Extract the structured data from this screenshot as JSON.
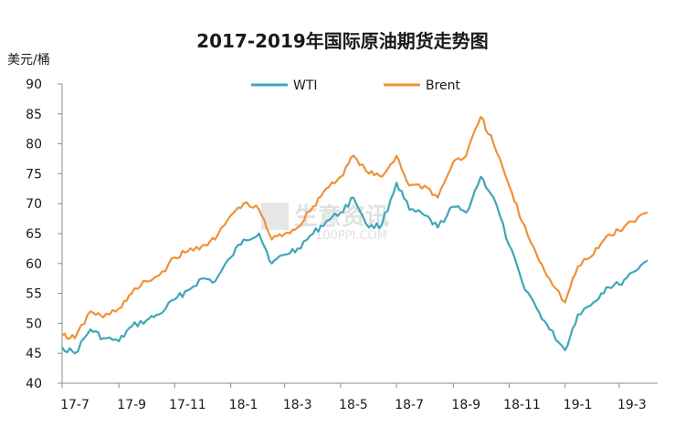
{
  "chart_data": {
    "type": "line",
    "title": "2017-2019年国际原油期货走势图",
    "ylabel": "美元/桶",
    "xlabel": "",
    "ylim": [
      40,
      90
    ],
    "yticks": [
      40,
      45,
      50,
      55,
      60,
      65,
      70,
      75,
      80,
      85,
      90
    ],
    "x_tick_labels": [
      "17-7",
      "17-9",
      "17-11",
      "18-1",
      "18-3",
      "18-5",
      "18-7",
      "18-9",
      "18-11",
      "19-1",
      "19-3"
    ],
    "legend_position": "top",
    "grid": false,
    "watermark": "生意资讯",
    "watermark_sub": "100PPI.COM",
    "x": [
      "2017-07-01",
      "2017-07-15",
      "2017-08-01",
      "2017-08-15",
      "2017-09-01",
      "2017-09-15",
      "2017-10-01",
      "2017-10-15",
      "2017-11-01",
      "2017-11-15",
      "2017-12-01",
      "2017-12-15",
      "2018-01-01",
      "2018-01-15",
      "2018-02-01",
      "2018-02-15",
      "2018-03-01",
      "2018-03-15",
      "2018-04-01",
      "2018-04-15",
      "2018-05-01",
      "2018-05-15",
      "2018-06-01",
      "2018-06-15",
      "2018-07-01",
      "2018-07-15",
      "2018-08-01",
      "2018-08-15",
      "2018-09-01",
      "2018-09-15",
      "2018-10-01",
      "2018-10-15",
      "2018-11-01",
      "2018-11-15",
      "2018-12-01",
      "2018-12-15",
      "2019-01-01",
      "2019-01-15",
      "2019-02-01",
      "2019-02-15",
      "2019-03-01",
      "2019-03-15",
      "2019-04-01"
    ],
    "series": [
      {
        "name": "WTI",
        "color": "#3fa7b8",
        "values": [
          46.0,
          45.0,
          49.0,
          47.5,
          47.0,
          49.5,
          50.5,
          51.5,
          54.0,
          55.5,
          57.5,
          57.0,
          61.0,
          64.0,
          65.0,
          60.0,
          61.5,
          62.5,
          65.0,
          67.0,
          68.5,
          71.0,
          66.0,
          66.5,
          73.5,
          69.0,
          68.0,
          66.0,
          69.5,
          68.5,
          74.5,
          71.0,
          63.0,
          57.0,
          52.5,
          49.0,
          45.5,
          51.5,
          53.5,
          56.0,
          56.5,
          58.5,
          60.5
        ]
      },
      {
        "name": "Brent",
        "color": "#f0913a",
        "values": [
          48.0,
          47.5,
          52.0,
          51.0,
          52.5,
          55.0,
          57.0,
          58.0,
          61.0,
          62.0,
          63.0,
          64.0,
          68.0,
          70.0,
          69.0,
          64.0,
          65.0,
          66.0,
          69.5,
          72.5,
          74.5,
          78.0,
          75.0,
          74.5,
          78.0,
          73.0,
          73.0,
          71.0,
          77.0,
          78.0,
          84.5,
          80.0,
          73.0,
          67.0,
          61.5,
          57.5,
          53.5,
          59.5,
          61.5,
          64.5,
          65.5,
          67.0,
          68.5
        ]
      }
    ]
  }
}
